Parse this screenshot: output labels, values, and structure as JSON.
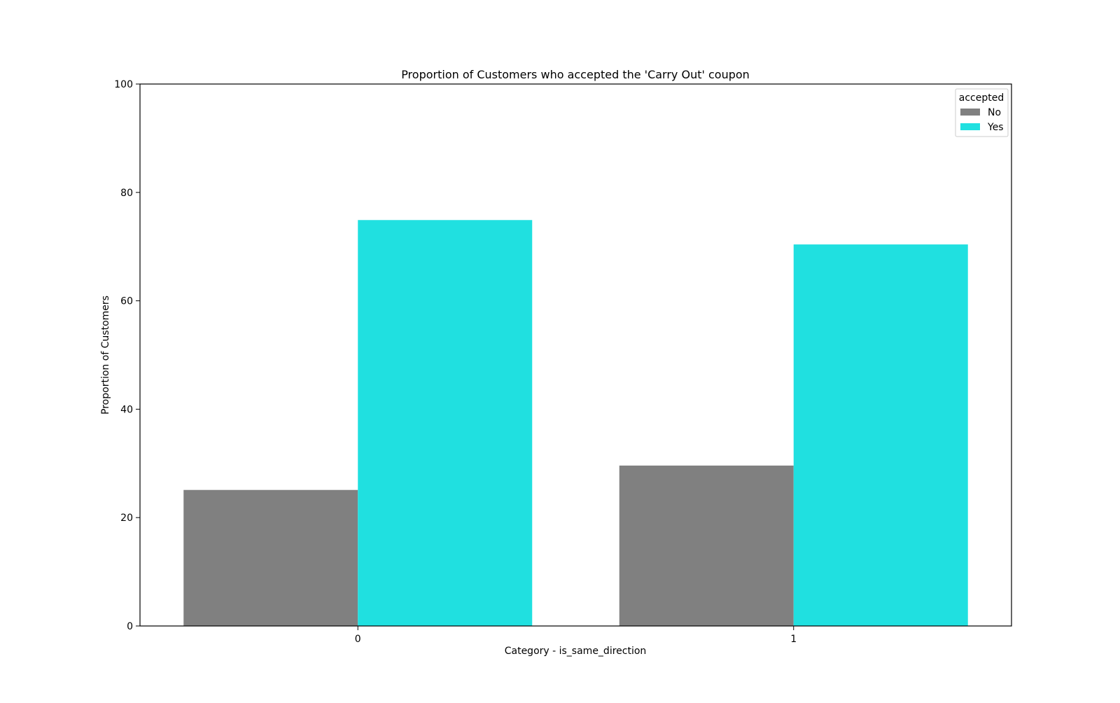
{
  "chart_data": {
    "type": "bar",
    "title": "Proportion of Customers who accepted the 'Carry Out' coupon",
    "xlabel": "Category - is_same_direction",
    "ylabel": "Proportion of Customers",
    "categories": [
      "0",
      "1"
    ],
    "series": [
      {
        "name": "No",
        "values": [
          25.1,
          29.6
        ],
        "color": "#808080"
      },
      {
        "name": "Yes",
        "values": [
          74.9,
          70.4
        ],
        "color": "#20e0e0"
      }
    ],
    "ylim": [
      0,
      100
    ],
    "yticks": [
      0,
      20,
      40,
      60,
      80,
      100
    ],
    "grid": false,
    "legend": {
      "title": "accepted",
      "placement": "top-right"
    }
  }
}
